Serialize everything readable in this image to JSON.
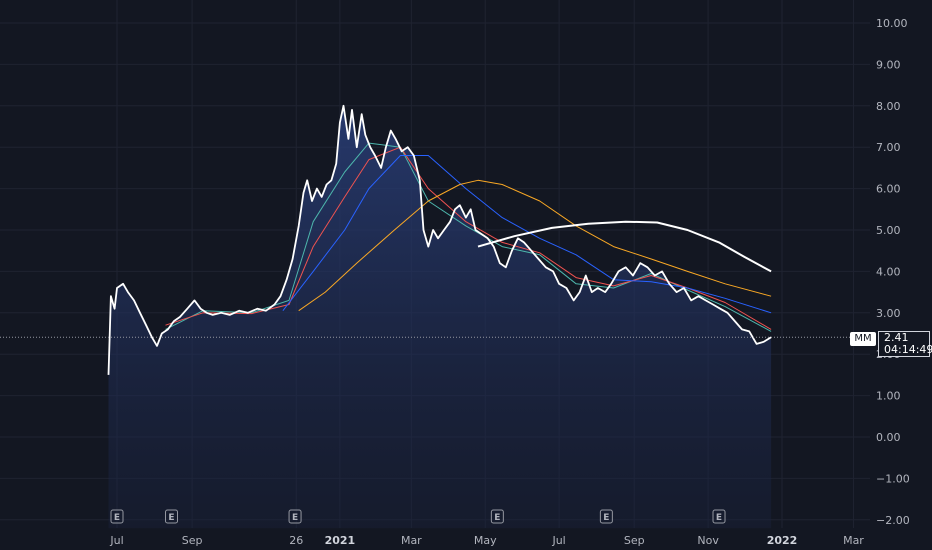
{
  "chart_data": {
    "type": "line",
    "symbol": "MM",
    "last_price": "2.41",
    "countdown": "04:14:49",
    "y_ticks": [
      "10.00",
      "9.00",
      "8.00",
      "7.00",
      "6.00",
      "5.00",
      "4.00",
      "3.00",
      "2.00",
      "1.00",
      "0.00",
      "−1.00",
      "−2.00"
    ],
    "ylim": [
      -2,
      10.4
    ],
    "x_ticks": [
      {
        "label": "Jul",
        "date": "2020-07-01",
        "bold": false
      },
      {
        "label": "Sep",
        "date": "2020-09-01",
        "bold": false
      },
      {
        "label": "26",
        "date": "2020-11-26",
        "bold": false
      },
      {
        "label": "2021",
        "date": "2021-01-01",
        "bold": true
      },
      {
        "label": "Mar",
        "date": "2021-03-01",
        "bold": false
      },
      {
        "label": "May",
        "date": "2021-05-01",
        "bold": false
      },
      {
        "label": "Jul",
        "date": "2021-07-01",
        "bold": false
      },
      {
        "label": "Sep",
        "date": "2021-09-01",
        "bold": false
      },
      {
        "label": "Nov",
        "date": "2021-11-01",
        "bold": false
      },
      {
        "label": "2022",
        "date": "2022-01-01",
        "bold": true
      },
      {
        "label": "Mar",
        "date": "2022-03-01",
        "bold": false
      }
    ],
    "earnings_markers": {
      "label": "E",
      "dates": [
        "2020-07-01",
        "2020-08-15",
        "2020-11-25",
        "2021-05-11",
        "2021-08-09",
        "2021-11-10"
      ]
    },
    "series": [
      {
        "role": "price",
        "color": "#ffffff",
        "values": [
          [
            "2020-06-24",
            1.5
          ],
          [
            "2020-06-26",
            3.4
          ],
          [
            "2020-06-29",
            3.1
          ],
          [
            "2020-07-01",
            3.6
          ],
          [
            "2020-07-06",
            3.7
          ],
          [
            "2020-07-10",
            3.5
          ],
          [
            "2020-07-15",
            3.3
          ],
          [
            "2020-07-20",
            3.0
          ],
          [
            "2020-07-25",
            2.7
          ],
          [
            "2020-07-30",
            2.4
          ],
          [
            "2020-08-03",
            2.2
          ],
          [
            "2020-08-07",
            2.5
          ],
          [
            "2020-08-12",
            2.6
          ],
          [
            "2020-08-17",
            2.8
          ],
          [
            "2020-08-22",
            2.9
          ],
          [
            "2020-08-28",
            3.1
          ],
          [
            "2020-09-03",
            3.3
          ],
          [
            "2020-09-08",
            3.1
          ],
          [
            "2020-09-13",
            3.0
          ],
          [
            "2020-09-18",
            2.95
          ],
          [
            "2020-09-25",
            3.0
          ],
          [
            "2020-10-02",
            2.95
          ],
          [
            "2020-10-10",
            3.05
          ],
          [
            "2020-10-17",
            3.0
          ],
          [
            "2020-10-25",
            3.1
          ],
          [
            "2020-11-01",
            3.05
          ],
          [
            "2020-11-08",
            3.2
          ],
          [
            "2020-11-13",
            3.4
          ],
          [
            "2020-11-18",
            3.8
          ],
          [
            "2020-11-23",
            4.3
          ],
          [
            "2020-11-28",
            5.1
          ],
          [
            "2020-12-02",
            5.9
          ],
          [
            "2020-12-05",
            6.2
          ],
          [
            "2020-12-09",
            5.7
          ],
          [
            "2020-12-13",
            6.0
          ],
          [
            "2020-12-17",
            5.8
          ],
          [
            "2020-12-21",
            6.1
          ],
          [
            "2020-12-25",
            6.2
          ],
          [
            "2020-12-29",
            6.6
          ],
          [
            "2021-01-01",
            7.6
          ],
          [
            "2021-01-04",
            8.0
          ],
          [
            "2021-01-08",
            7.2
          ],
          [
            "2021-01-11",
            7.9
          ],
          [
            "2021-01-15",
            7.0
          ],
          [
            "2021-01-19",
            7.8
          ],
          [
            "2021-01-22",
            7.3
          ],
          [
            "2021-01-26",
            7.0
          ],
          [
            "2021-01-30",
            6.8
          ],
          [
            "2021-02-04",
            6.5
          ],
          [
            "2021-02-08",
            7.0
          ],
          [
            "2021-02-12",
            7.4
          ],
          [
            "2021-02-16",
            7.2
          ],
          [
            "2021-02-21",
            6.9
          ],
          [
            "2021-02-26",
            7.0
          ],
          [
            "2021-03-03",
            6.8
          ],
          [
            "2021-03-08",
            6.2
          ],
          [
            "2021-03-11",
            5.0
          ],
          [
            "2021-03-15",
            4.6
          ],
          [
            "2021-03-19",
            5.0
          ],
          [
            "2021-03-23",
            4.8
          ],
          [
            "2021-03-28",
            5.0
          ],
          [
            "2021-04-02",
            5.2
          ],
          [
            "2021-04-06",
            5.5
          ],
          [
            "2021-04-10",
            5.6
          ],
          [
            "2021-04-15",
            5.3
          ],
          [
            "2021-04-19",
            5.5
          ],
          [
            "2021-04-23",
            5.0
          ],
          [
            "2021-04-28",
            4.9
          ],
          [
            "2021-05-03",
            4.8
          ],
          [
            "2021-05-08",
            4.6
          ],
          [
            "2021-05-13",
            4.2
          ],
          [
            "2021-05-18",
            4.1
          ],
          [
            "2021-05-23",
            4.5
          ],
          [
            "2021-05-28",
            4.8
          ],
          [
            "2021-06-02",
            4.7
          ],
          [
            "2021-06-08",
            4.5
          ],
          [
            "2021-06-14",
            4.3
          ],
          [
            "2021-06-20",
            4.1
          ],
          [
            "2021-06-26",
            4.0
          ],
          [
            "2021-07-01",
            3.7
          ],
          [
            "2021-07-07",
            3.6
          ],
          [
            "2021-07-13",
            3.3
          ],
          [
            "2021-07-18",
            3.5
          ],
          [
            "2021-07-23",
            3.9
          ],
          [
            "2021-07-28",
            3.5
          ],
          [
            "2021-08-02",
            3.6
          ],
          [
            "2021-08-08",
            3.5
          ],
          [
            "2021-08-13",
            3.7
          ],
          [
            "2021-08-19",
            4.0
          ],
          [
            "2021-08-25",
            4.1
          ],
          [
            "2021-08-31",
            3.9
          ],
          [
            "2021-09-06",
            4.2
          ],
          [
            "2021-09-12",
            4.1
          ],
          [
            "2021-09-18",
            3.9
          ],
          [
            "2021-09-24",
            4.0
          ],
          [
            "2021-09-30",
            3.7
          ],
          [
            "2021-10-06",
            3.5
          ],
          [
            "2021-10-12",
            3.6
          ],
          [
            "2021-10-18",
            3.3
          ],
          [
            "2021-10-24",
            3.4
          ],
          [
            "2021-10-30",
            3.3
          ],
          [
            "2021-11-05",
            3.2
          ],
          [
            "2021-11-11",
            3.1
          ],
          [
            "2021-11-17",
            3.0
          ],
          [
            "2021-11-23",
            2.8
          ],
          [
            "2021-11-29",
            2.6
          ],
          [
            "2021-12-05",
            2.55
          ],
          [
            "2021-12-11",
            2.25
          ],
          [
            "2021-12-17",
            2.3
          ],
          [
            "2021-12-23",
            2.41
          ]
        ]
      },
      {
        "role": "ma-fast",
        "color": "#4db6ac",
        "values": [
          [
            "2020-08-10",
            2.6
          ],
          [
            "2020-09-10",
            3.05
          ],
          [
            "2020-10-20",
            3.0
          ],
          [
            "2020-11-20",
            3.3
          ],
          [
            "2020-12-10",
            5.2
          ],
          [
            "2021-01-05",
            6.4
          ],
          [
            "2021-01-25",
            7.1
          ],
          [
            "2021-02-20",
            7.0
          ],
          [
            "2021-03-15",
            5.7
          ],
          [
            "2021-04-15",
            5.1
          ],
          [
            "2021-05-15",
            4.6
          ],
          [
            "2021-06-15",
            4.4
          ],
          [
            "2021-07-15",
            3.7
          ],
          [
            "2021-08-15",
            3.6
          ],
          [
            "2021-09-15",
            3.95
          ],
          [
            "2021-10-15",
            3.55
          ],
          [
            "2021-11-15",
            3.15
          ],
          [
            "2021-12-23",
            2.55
          ]
        ]
      },
      {
        "role": "ma-mid",
        "color": "#ef5350",
        "values": [
          [
            "2020-08-10",
            2.7
          ],
          [
            "2020-09-10",
            3.0
          ],
          [
            "2020-10-20",
            2.98
          ],
          [
            "2020-11-20",
            3.2
          ],
          [
            "2020-12-10",
            4.6
          ],
          [
            "2021-01-05",
            5.8
          ],
          [
            "2021-01-25",
            6.7
          ],
          [
            "2021-02-20",
            7.0
          ],
          [
            "2021-03-15",
            6.0
          ],
          [
            "2021-04-15",
            5.2
          ],
          [
            "2021-05-15",
            4.7
          ],
          [
            "2021-06-15",
            4.45
          ],
          [
            "2021-07-15",
            3.85
          ],
          [
            "2021-08-15",
            3.65
          ],
          [
            "2021-09-15",
            3.9
          ],
          [
            "2021-10-15",
            3.6
          ],
          [
            "2021-11-15",
            3.25
          ],
          [
            "2021-12-23",
            2.6
          ]
        ]
      },
      {
        "role": "ma-slow",
        "color": "#2962ff",
        "values": [
          [
            "2020-11-15",
            3.05
          ],
          [
            "2020-12-10",
            4.0
          ],
          [
            "2021-01-05",
            5.0
          ],
          [
            "2021-01-25",
            6.0
          ],
          [
            "2021-02-20",
            6.8
          ],
          [
            "2021-03-15",
            6.8
          ],
          [
            "2021-04-15",
            6.0
          ],
          [
            "2021-05-15",
            5.3
          ],
          [
            "2021-06-15",
            4.8
          ],
          [
            "2021-07-15",
            4.4
          ],
          [
            "2021-08-15",
            3.8
          ],
          [
            "2021-09-15",
            3.75
          ],
          [
            "2021-10-15",
            3.6
          ],
          [
            "2021-11-15",
            3.35
          ],
          [
            "2021-12-23",
            3.0
          ]
        ]
      },
      {
        "role": "ma-100",
        "color": "#f9a825",
        "values": [
          [
            "2020-11-28",
            3.05
          ],
          [
            "2020-12-20",
            3.5
          ],
          [
            "2021-01-15",
            4.2
          ],
          [
            "2021-02-15",
            5.0
          ],
          [
            "2021-03-15",
            5.7
          ],
          [
            "2021-04-10",
            6.1
          ],
          [
            "2021-04-25",
            6.2
          ],
          [
            "2021-05-15",
            6.1
          ],
          [
            "2021-06-15",
            5.7
          ],
          [
            "2021-07-15",
            5.1
          ],
          [
            "2021-08-15",
            4.6
          ],
          [
            "2021-09-15",
            4.3
          ],
          [
            "2021-10-15",
            4.0
          ],
          [
            "2021-11-15",
            3.7
          ],
          [
            "2021-12-23",
            3.4
          ]
        ]
      },
      {
        "role": "ma-200",
        "color": "#ffffff",
        "values": [
          [
            "2021-04-25",
            4.6
          ],
          [
            "2021-05-25",
            4.85
          ],
          [
            "2021-06-25",
            5.05
          ],
          [
            "2021-07-25",
            5.15
          ],
          [
            "2021-08-25",
            5.2
          ],
          [
            "2021-09-20",
            5.18
          ],
          [
            "2021-10-15",
            5.0
          ],
          [
            "2021-11-10",
            4.7
          ],
          [
            "2021-12-01",
            4.35
          ],
          [
            "2021-12-23",
            4.0
          ]
        ]
      }
    ]
  }
}
